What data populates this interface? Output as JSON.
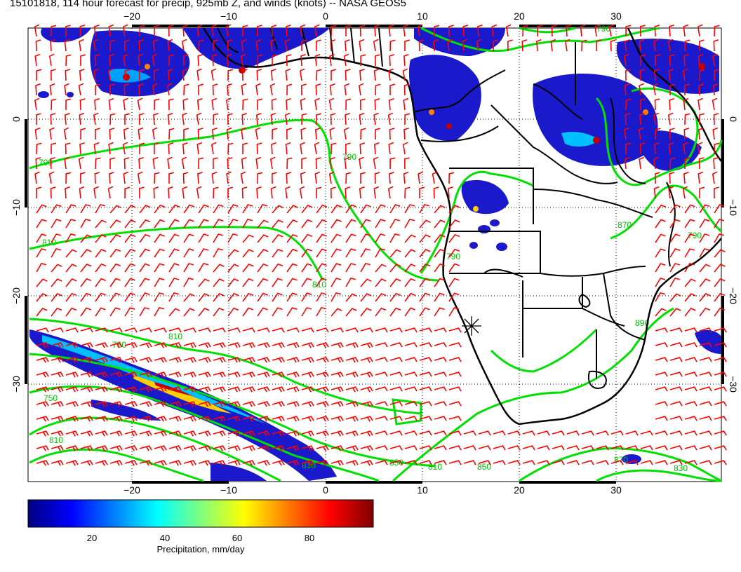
{
  "title": "15101818, 114 hour forecast for precip, 925mb Z, and winds (knots) -- NASA GEOS5",
  "axes": {
    "lon_ticks": [
      "−20",
      "−10",
      "0",
      "10",
      "20",
      "30"
    ],
    "lat_ticks": [
      "0",
      "−10",
      "−20",
      "−30"
    ]
  },
  "contour_labels": [
    "790",
    "790",
    "810",
    "810",
    "810",
    "750",
    "750",
    "790",
    "810",
    "810",
    "850",
    "870",
    "890",
    "790",
    "790",
    "870",
    "850",
    "830",
    "810"
  ],
  "colorbar": {
    "title": "Precipitation, mm/day",
    "ticks": [
      "20",
      "40",
      "60",
      "80"
    ],
    "colors": [
      "#00007f",
      "#0000ff",
      "#007fff",
      "#00ffff",
      "#7fff7f",
      "#ffff00",
      "#ff7f00",
      "#ff0000",
      "#7f0000"
    ]
  },
  "colors": {
    "contour": "#00e000",
    "wind_barb": "#ff0000",
    "coastline": "#000000"
  },
  "icons": {
    "marker": "star-marker-icon"
  }
}
